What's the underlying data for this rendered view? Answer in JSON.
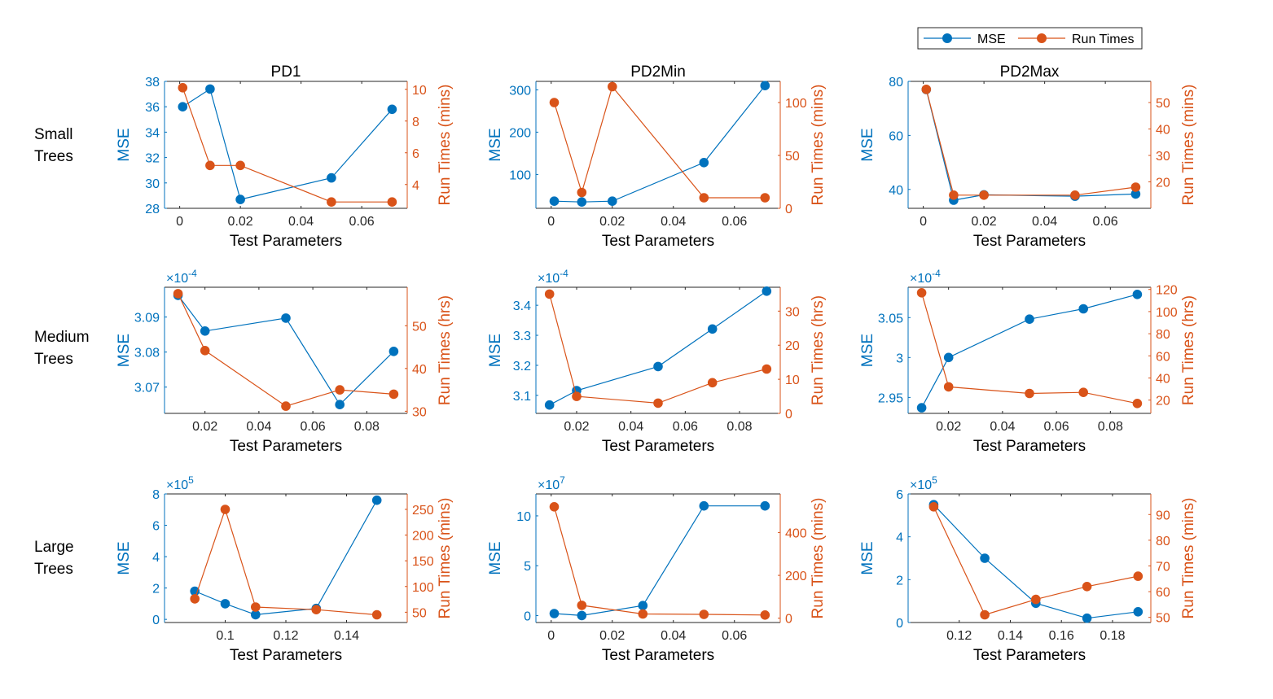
{
  "figure": {
    "legend": {
      "mse_label": "MSE",
      "run_label": "Run Times",
      "placement": "top-right"
    },
    "colors": {
      "mse": "#0072BD",
      "run": "#D95319",
      "axis": "#262626",
      "frame": "#262626"
    },
    "xlabel": "Test Parameters",
    "mse_ylabel": "MSE",
    "row_labels": [
      "Small\nTrees",
      "Medium\nTrees",
      "Large\nTrees"
    ],
    "column_titles": [
      "PD1",
      "PD2Min",
      "PD2Max"
    ]
  },
  "chart_data": [
    {
      "type": "line",
      "row": 0,
      "col": 0,
      "title": "PD1",
      "xlabel": "Test Parameters",
      "ylabel_left": "MSE",
      "ylabel_right": "Run Times (mins)",
      "xlim": [
        -0.005,
        0.075
      ],
      "xticks": [
        0,
        0.02,
        0.04,
        0.06
      ],
      "xtick_labels": [
        "0",
        "0.02",
        "0.04",
        "0.06"
      ],
      "ylim_left": [
        28,
        38
      ],
      "yticks_left": [
        28,
        30,
        32,
        34,
        36,
        38
      ],
      "ytick_labels_left": [
        "28",
        "30",
        "32",
        "34",
        "36",
        "38"
      ],
      "left_exponent": "",
      "ylim_right": [
        2.5,
        10.5
      ],
      "yticks_right": [
        4,
        6,
        8,
        10
      ],
      "ytick_labels_right": [
        "4",
        "6",
        "8",
        "10"
      ],
      "series": [
        {
          "name": "MSE",
          "axis": "left",
          "x": [
            0.001,
            0.01,
            0.02,
            0.05,
            0.07
          ],
          "values": [
            36.0,
            37.4,
            28.7,
            30.4,
            35.8
          ]
        },
        {
          "name": "Run Times",
          "axis": "right",
          "x": [
            0.001,
            0.01,
            0.02,
            0.05,
            0.07
          ],
          "values": [
            10.1,
            5.2,
            5.2,
            2.9,
            2.9
          ]
        }
      ]
    },
    {
      "type": "line",
      "row": 0,
      "col": 1,
      "title": "PD2Min",
      "xlabel": "Test Parameters",
      "ylabel_left": "MSE",
      "ylabel_right": "Run Times (mins)",
      "xlim": [
        -0.005,
        0.075
      ],
      "xticks": [
        0,
        0.02,
        0.04,
        0.06
      ],
      "xtick_labels": [
        "0",
        "0.02",
        "0.04",
        "0.06"
      ],
      "ylim_left": [
        20,
        320
      ],
      "yticks_left": [
        100,
        200,
        300
      ],
      "ytick_labels_left": [
        "100",
        "200",
        "300"
      ],
      "left_exponent": "",
      "ylim_right": [
        0,
        120
      ],
      "yticks_right": [
        0,
        50,
        100
      ],
      "ytick_labels_right": [
        "0",
        "50",
        "100"
      ],
      "series": [
        {
          "name": "MSE",
          "axis": "left",
          "x": [
            0.001,
            0.01,
            0.02,
            0.05,
            0.07
          ],
          "values": [
            37,
            35,
            37,
            128,
            310
          ]
        },
        {
          "name": "Run Times",
          "axis": "right",
          "x": [
            0.001,
            0.01,
            0.02,
            0.05,
            0.07
          ],
          "values": [
            100,
            15,
            115,
            10,
            10
          ]
        }
      ]
    },
    {
      "type": "line",
      "row": 0,
      "col": 2,
      "title": "PD2Max",
      "xlabel": "Test Parameters",
      "ylabel_left": "MSE",
      "ylabel_right": "Run Times (mins)",
      "xlim": [
        -0.005,
        0.075
      ],
      "xticks": [
        0,
        0.02,
        0.04,
        0.06
      ],
      "xtick_labels": [
        "0",
        "0.02",
        "0.04",
        "0.06"
      ],
      "ylim_left": [
        33,
        80
      ],
      "yticks_left": [
        40,
        60,
        80
      ],
      "ytick_labels_left": [
        "40",
        "60",
        "80"
      ],
      "left_exponent": "",
      "ylim_right": [
        10,
        58
      ],
      "yticks_right": [
        20,
        30,
        40,
        50
      ],
      "ytick_labels_right": [
        "20",
        "30",
        "40",
        "50"
      ],
      "series": [
        {
          "name": "MSE",
          "axis": "left",
          "x": [
            0.001,
            0.01,
            0.02,
            0.05,
            0.07
          ],
          "values": [
            77,
            36,
            38,
            37.5,
            38.3
          ]
        },
        {
          "name": "Run Times",
          "axis": "right",
          "x": [
            0.001,
            0.01,
            0.02,
            0.05,
            0.07
          ],
          "values": [
            55,
            15,
            15,
            15,
            18
          ]
        }
      ]
    },
    {
      "type": "line",
      "row": 1,
      "col": 0,
      "title": "",
      "xlabel": "Test Parameters",
      "ylabel_left": "MSE",
      "ylabel_right": "Run Times (hrs)",
      "xlim": [
        0.005,
        0.095
      ],
      "xticks": [
        0.02,
        0.04,
        0.06,
        0.08
      ],
      "xtick_labels": [
        "0.02",
        "0.04",
        "0.06",
        "0.08"
      ],
      "ylim_left": [
        3.0625,
        3.0985
      ],
      "yticks_left": [
        3.07,
        3.08,
        3.09
      ],
      "ytick_labels_left": [
        "3.07",
        "3.08",
        "3.09"
      ],
      "left_exponent": "-4",
      "ylim_right": [
        29.5,
        59
      ],
      "yticks_right": [
        30,
        40,
        50
      ],
      "ytick_labels_right": [
        "30",
        "40",
        "50"
      ],
      "series": [
        {
          "name": "MSE",
          "axis": "left",
          "x": [
            0.01,
            0.02,
            0.05,
            0.07,
            0.09
          ],
          "values": [
            3.0962,
            3.086,
            3.0897,
            3.065,
            3.0802
          ]
        },
        {
          "name": "Run Times",
          "axis": "right",
          "x": [
            0.01,
            0.02,
            0.05,
            0.07,
            0.09
          ],
          "values": [
            57.5,
            44.2,
            31.2,
            35.0,
            34.0
          ]
        }
      ]
    },
    {
      "type": "line",
      "row": 1,
      "col": 1,
      "title": "",
      "xlabel": "Test Parameters",
      "ylabel_left": "MSE",
      "ylabel_right": "Run Times (hrs)",
      "xlim": [
        0.005,
        0.095
      ],
      "xticks": [
        0.02,
        0.04,
        0.06,
        0.08
      ],
      "xtick_labels": [
        "0.02",
        "0.04",
        "0.06",
        "0.08"
      ],
      "ylim_left": [
        3.04,
        3.46
      ],
      "yticks_left": [
        3.1,
        3.2,
        3.3,
        3.4
      ],
      "ytick_labels_left": [
        "3.1",
        "3.2",
        "3.3",
        "3.4"
      ],
      "left_exponent": "-4",
      "ylim_right": [
        0,
        37
      ],
      "yticks_right": [
        0,
        10,
        20,
        30
      ],
      "ytick_labels_right": [
        "0",
        "10",
        "20",
        "30"
      ],
      "series": [
        {
          "name": "MSE",
          "axis": "left",
          "x": [
            0.01,
            0.02,
            0.05,
            0.07,
            0.09
          ],
          "values": [
            3.068,
            3.116,
            3.196,
            3.321,
            3.447
          ]
        },
        {
          "name": "Run Times",
          "axis": "right",
          "x": [
            0.01,
            0.02,
            0.05,
            0.07,
            0.09
          ],
          "values": [
            35,
            5,
            3,
            9,
            13
          ]
        }
      ]
    },
    {
      "type": "line",
      "row": 1,
      "col": 2,
      "title": "",
      "xlabel": "Test Parameters",
      "ylabel_left": "MSE",
      "ylabel_right": "Run Times (hrs)",
      "xlim": [
        0.005,
        0.095
      ],
      "xticks": [
        0.02,
        0.04,
        0.06,
        0.08
      ],
      "xtick_labels": [
        "0.02",
        "0.04",
        "0.06",
        "0.08"
      ],
      "ylim_left": [
        2.93,
        3.088
      ],
      "yticks_left": [
        2.95,
        3.0,
        3.05
      ],
      "ytick_labels_left": [
        "2.95",
        "3",
        "3.05"
      ],
      "left_exponent": "-4",
      "ylim_right": [
        8,
        122
      ],
      "yticks_right": [
        20,
        40,
        60,
        80,
        100,
        120
      ],
      "ytick_labels_right": [
        "20",
        "40",
        "60",
        "80",
        "100",
        "120"
      ],
      "series": [
        {
          "name": "MSE",
          "axis": "left",
          "x": [
            0.01,
            0.02,
            0.05,
            0.07,
            0.09
          ],
          "values": [
            2.937,
            3.0,
            3.048,
            3.061,
            3.079
          ]
        },
        {
          "name": "Run Times",
          "axis": "right",
          "x": [
            0.01,
            0.02,
            0.05,
            0.07,
            0.09
          ],
          "values": [
            117,
            32,
            26,
            27,
            17
          ]
        }
      ]
    },
    {
      "type": "line",
      "row": 2,
      "col": 0,
      "title": "",
      "xlabel": "Test Parameters",
      "ylabel_left": "MSE",
      "ylabel_right": "Run Times (mins)",
      "xlim": [
        0.08,
        0.16
      ],
      "xticks": [
        0.1,
        0.12,
        0.14
      ],
      "xtick_labels": [
        "0.1",
        "0.12",
        "0.14"
      ],
      "ylim_left": [
        -0.2,
        8
      ],
      "yticks_left": [
        0,
        2,
        4,
        6,
        8
      ],
      "ytick_labels_left": [
        "0",
        "2",
        "4",
        "6",
        "8"
      ],
      "left_exponent": "5",
      "ylim_right": [
        30,
        280
      ],
      "yticks_right": [
        50,
        100,
        150,
        200,
        250
      ],
      "ytick_labels_right": [
        "50",
        "100",
        "150",
        "200",
        "250"
      ],
      "series": [
        {
          "name": "MSE",
          "axis": "left",
          "x": [
            0.09,
            0.1,
            0.11,
            0.13,
            0.15
          ],
          "values": [
            1.8,
            1.0,
            0.3,
            0.7,
            7.6
          ]
        },
        {
          "name": "Run Times",
          "axis": "right",
          "x": [
            0.09,
            0.1,
            0.11,
            0.13,
            0.15
          ],
          "values": [
            76,
            250,
            60,
            55,
            45
          ]
        }
      ]
    },
    {
      "type": "line",
      "row": 2,
      "col": 1,
      "title": "",
      "xlabel": "Test Parameters",
      "ylabel_left": "MSE",
      "ylabel_right": "Run Times (mins)",
      "xlim": [
        -0.005,
        0.075
      ],
      "xticks": [
        0,
        0.02,
        0.04,
        0.06
      ],
      "xtick_labels": [
        "0",
        "0.02",
        "0.04",
        "0.06"
      ],
      "ylim_left": [
        -0.7,
        12.2
      ],
      "yticks_left": [
        0,
        5,
        10
      ],
      "ytick_labels_left": [
        "0",
        "5",
        "10"
      ],
      "left_exponent": "7",
      "ylim_right": [
        -20,
        580
      ],
      "yticks_right": [
        0,
        200,
        400
      ],
      "ytick_labels_right": [
        "0",
        "200",
        "400"
      ],
      "series": [
        {
          "name": "MSE",
          "axis": "left",
          "x": [
            0.001,
            0.01,
            0.03,
            0.05,
            0.07
          ],
          "values": [
            0.2,
            0.0,
            1.0,
            11.0,
            11.0
          ]
        },
        {
          "name": "Run Times",
          "axis": "right",
          "x": [
            0.001,
            0.01,
            0.03,
            0.05,
            0.07
          ],
          "values": [
            520,
            60,
            20,
            18,
            15
          ]
        }
      ]
    },
    {
      "type": "line",
      "row": 2,
      "col": 2,
      "title": "",
      "xlabel": "Test Parameters",
      "ylabel_left": "MSE",
      "ylabel_right": "Run Times (mins)",
      "xlim": [
        0.1,
        0.195
      ],
      "xticks": [
        0.12,
        0.14,
        0.16,
        0.18
      ],
      "xtick_labels": [
        "0.12",
        "0.14",
        "0.16",
        "0.18"
      ],
      "ylim_left": [
        0,
        6
      ],
      "yticks_left": [
        0,
        2,
        4,
        6
      ],
      "ytick_labels_left": [
        "0",
        "2",
        "4",
        "6"
      ],
      "left_exponent": "5",
      "ylim_right": [
        48,
        98
      ],
      "yticks_right": [
        50,
        60,
        70,
        80,
        90
      ],
      "ytick_labels_right": [
        "50",
        "60",
        "70",
        "80",
        "90"
      ],
      "series": [
        {
          "name": "MSE",
          "axis": "left",
          "x": [
            0.11,
            0.13,
            0.15,
            0.17,
            0.19
          ],
          "values": [
            5.5,
            3.0,
            0.9,
            0.2,
            0.5
          ]
        },
        {
          "name": "Run Times",
          "axis": "right",
          "x": [
            0.11,
            0.13,
            0.15,
            0.17,
            0.19
          ],
          "values": [
            93,
            51,
            57,
            62,
            66
          ]
        }
      ]
    }
  ]
}
